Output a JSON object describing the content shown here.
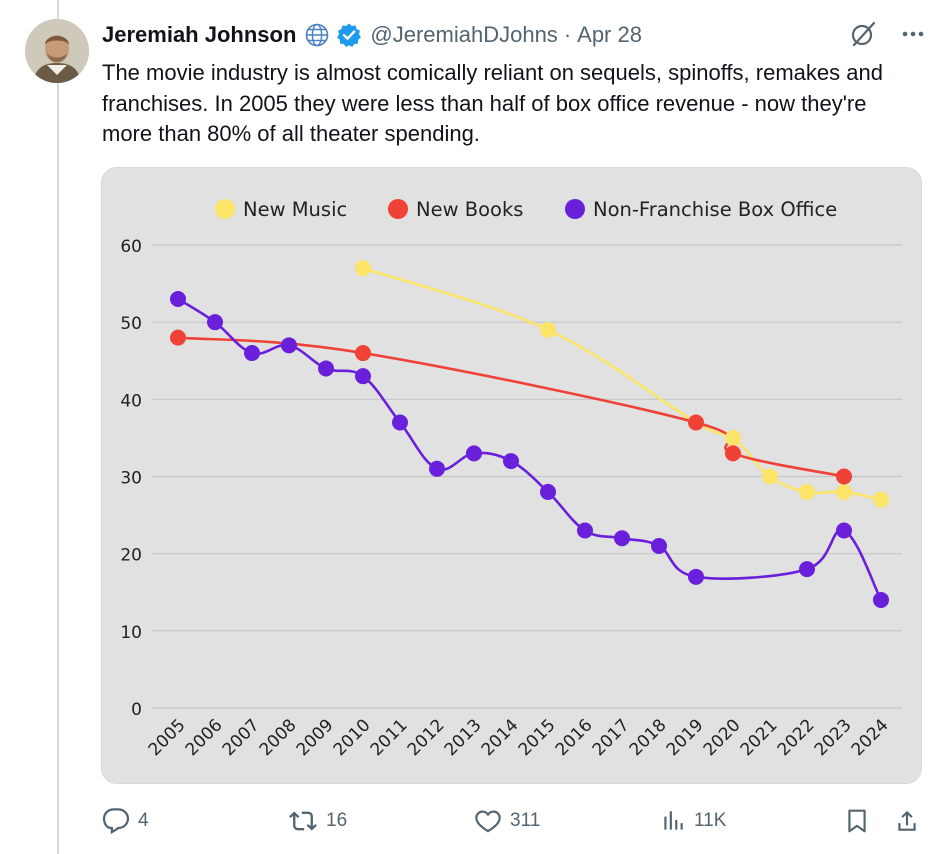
{
  "tweet": {
    "author_name": "Jeremiah Johnson",
    "handle": "@JeremiahDJohns",
    "date": "Apr 28",
    "separator": "·",
    "text": "The movie industry is almost comically reliant on sequels, spinoffs, remakes and franchises. In 2005 they were less than half of box office revenue - now they're more than 80% of all theater spending."
  },
  "actions": {
    "replies": "4",
    "reposts": "16",
    "likes": "311",
    "views": "11K"
  },
  "colors": {
    "new_music": "#fbe468",
    "new_books": "#ef4136",
    "non_franchise": "#6a1fdb",
    "grid": "#c6c6c6",
    "chart_bg": "#e1e1e1"
  },
  "chart_data": {
    "type": "line",
    "title": "",
    "xlabel": "",
    "ylabel": "",
    "legend_position": "top",
    "grid": true,
    "ylim": [
      0,
      60
    ],
    "yticks": [
      0,
      10,
      20,
      30,
      40,
      50,
      60
    ],
    "categories": [
      "2005",
      "2006",
      "2007",
      "2008",
      "2009",
      "2010",
      "2011",
      "2012",
      "2013",
      "2014",
      "2015",
      "2016",
      "2017",
      "2018",
      "2019",
      "2020",
      "2021",
      "2022",
      "2023",
      "2024"
    ],
    "series": [
      {
        "name": "New Music",
        "color": "#fbe468",
        "x": [
          "2010",
          "2015",
          "2019",
          "2020",
          "2021",
          "2022",
          "2023",
          "2024"
        ],
        "values": [
          57,
          49,
          37,
          35,
          30,
          28,
          28,
          27
        ]
      },
      {
        "name": "New Books",
        "color": "#ef4136",
        "x": [
          "2005",
          "2010",
          "2019",
          "2020",
          "2023"
        ],
        "values": [
          48,
          46,
          37,
          33,
          30
        ]
      },
      {
        "name": "Non-Franchise Box Office",
        "color": "#6a1fdb",
        "x": [
          "2005",
          "2006",
          "2007",
          "2008",
          "2009",
          "2010",
          "2011",
          "2012",
          "2013",
          "2014",
          "2015",
          "2016",
          "2017",
          "2018",
          "2019",
          "2022",
          "2023",
          "2024"
        ],
        "values": [
          53,
          50,
          46,
          47,
          44,
          43,
          37,
          31,
          33,
          32,
          28,
          23,
          22,
          21,
          17,
          18,
          23,
          14
        ]
      }
    ]
  }
}
